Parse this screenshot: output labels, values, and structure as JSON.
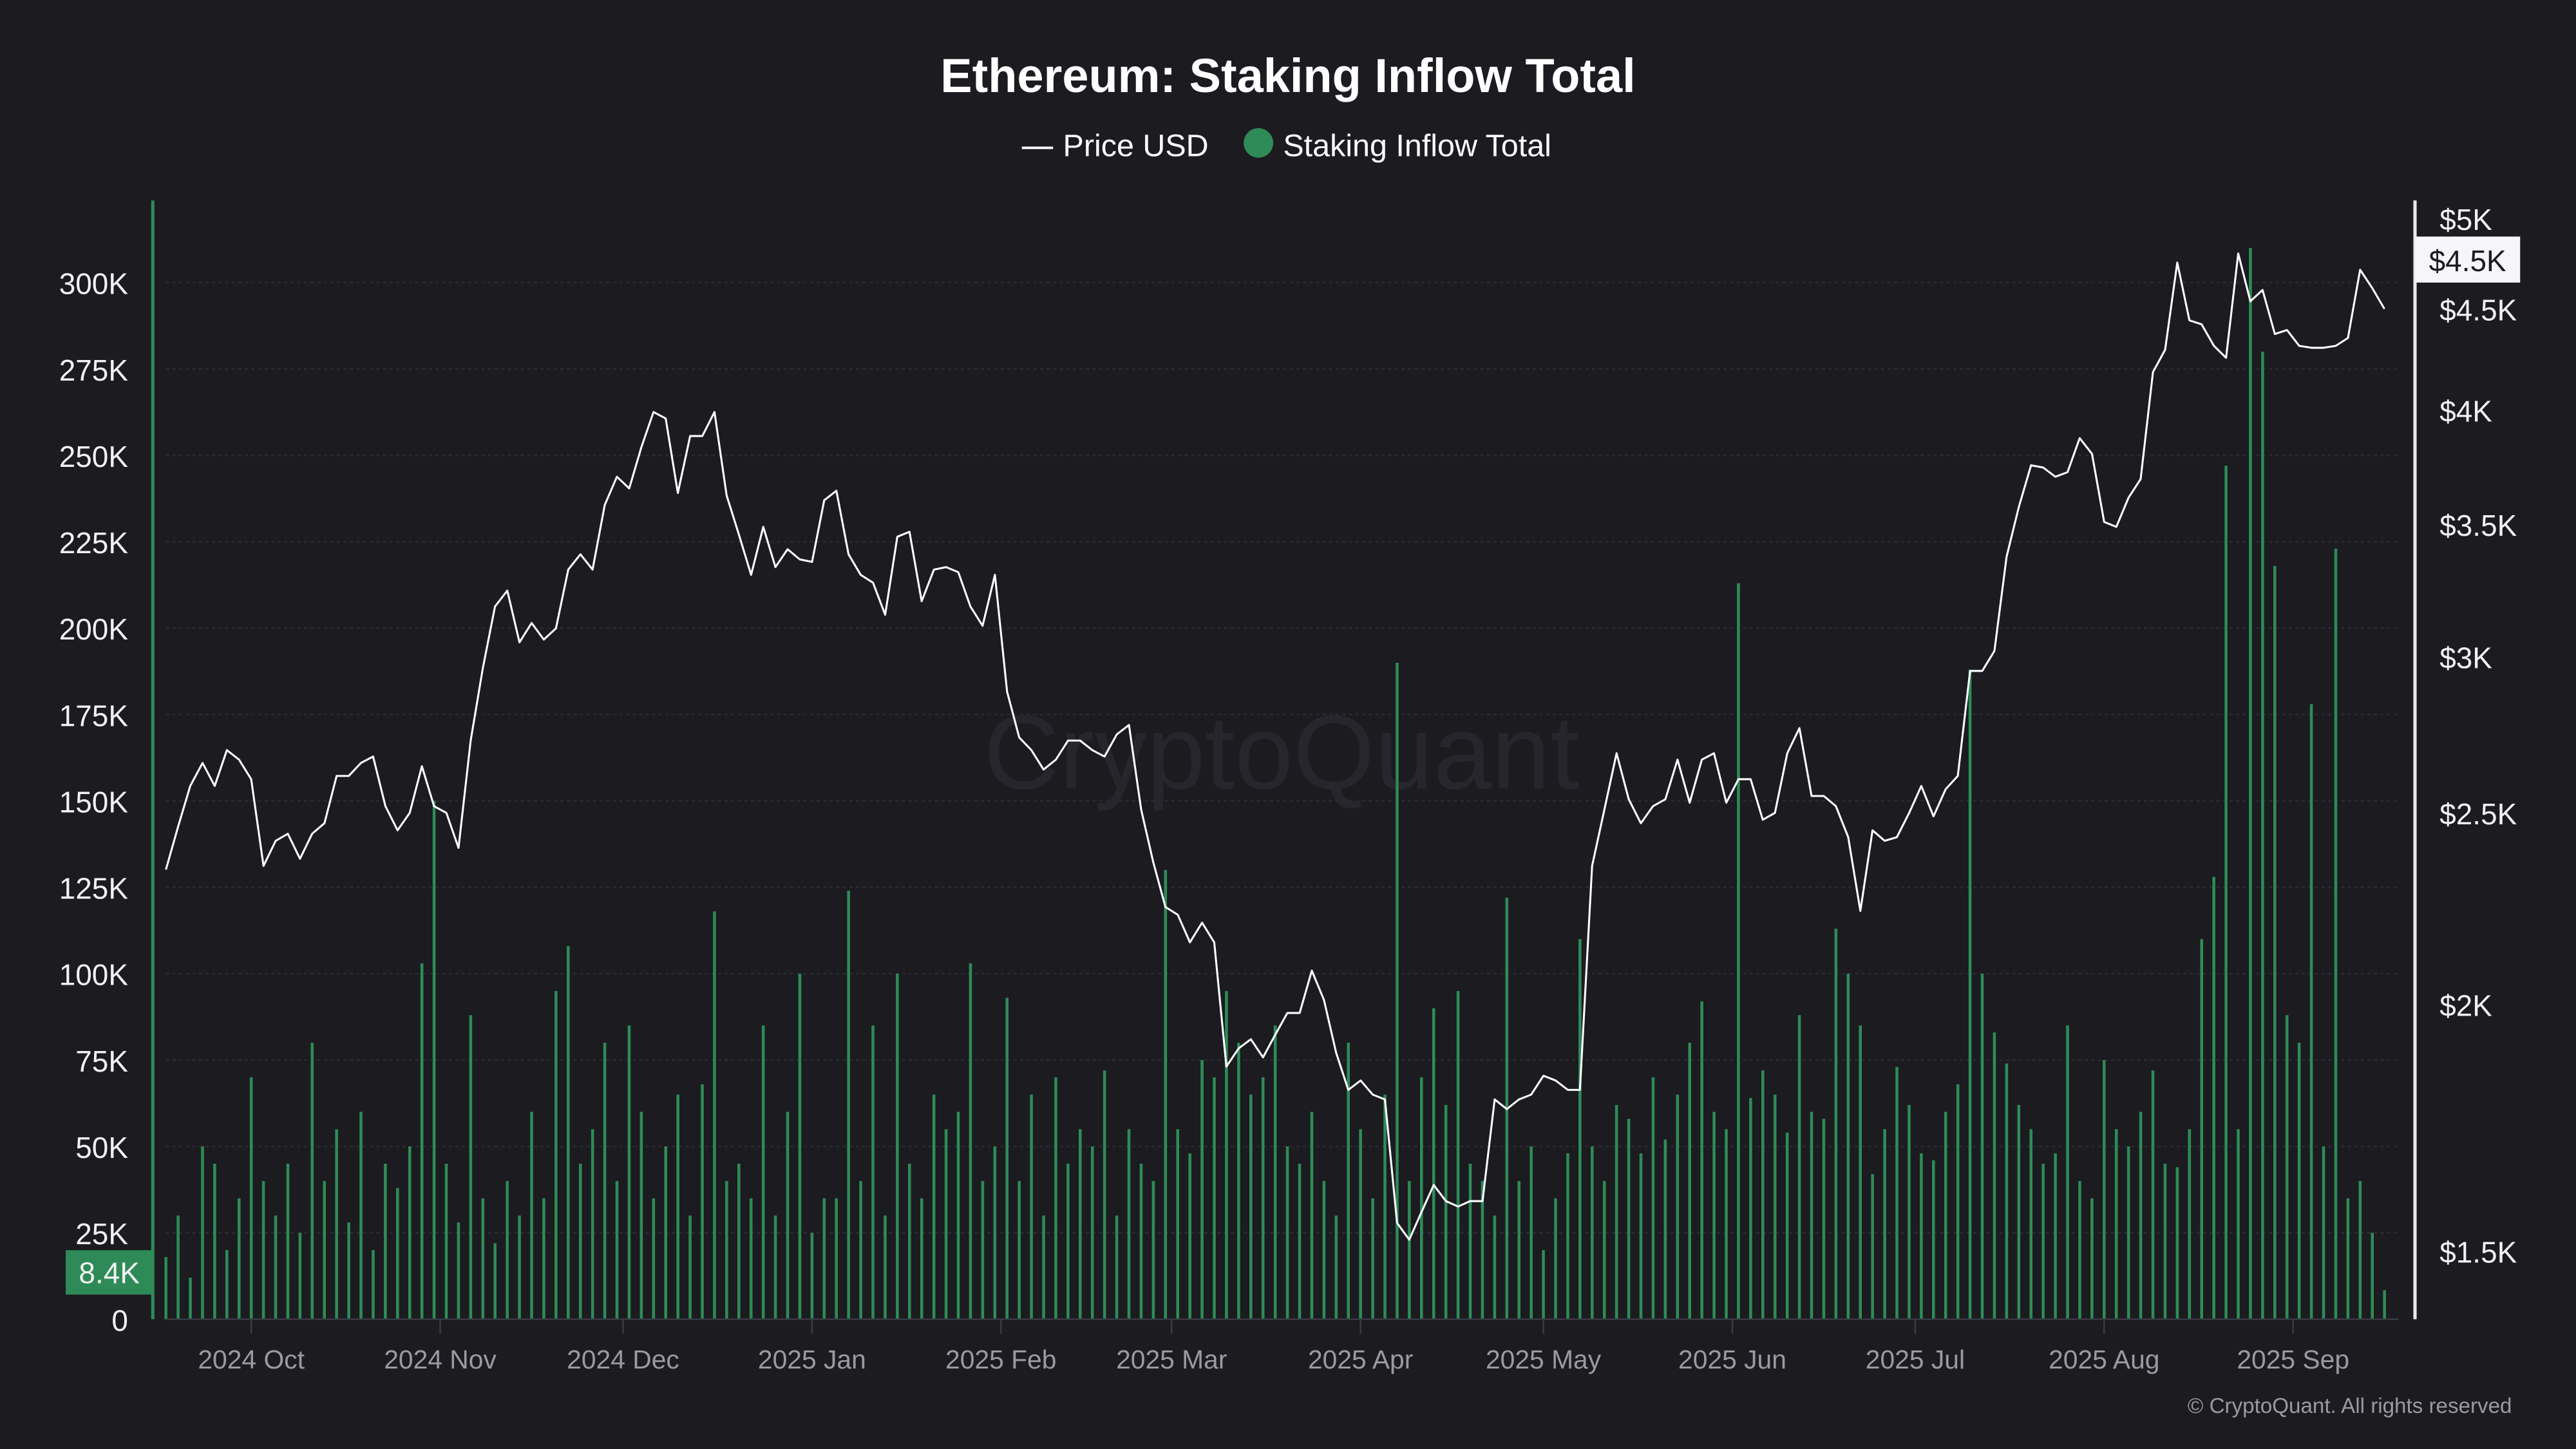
{
  "chart_data": {
    "type": "bar+line",
    "title": "Ethereum: Staking Inflow Total",
    "legend": {
      "position": "top-center",
      "items": [
        {
          "name": "Price USD",
          "color": "#ffffff",
          "marker": "line"
        },
        {
          "name": "Staking Inflow Total",
          "color": "#2e8b57",
          "marker": "dot"
        }
      ]
    },
    "x_start": "2024-09-17",
    "x_step_days": 2,
    "x_tick_labels": [
      "2024 Oct",
      "2024 Nov",
      "2024 Dec",
      "2025 Jan",
      "2025 Feb",
      "2025 Mar",
      "2025 Apr",
      "2025 May",
      "2025 Jun",
      "2025 Jul",
      "2025 Aug",
      "2025 Sep"
    ],
    "x_tick_dates": [
      "2024-10-01",
      "2024-11-01",
      "2024-12-01",
      "2025-01-01",
      "2025-02-01",
      "2025-03-01",
      "2025-04-01",
      "2025-05-01",
      "2025-06-01",
      "2025-07-01",
      "2025-08-01",
      "2025-09-01"
    ],
    "left_axis": {
      "ylim": [
        0,
        300000
      ],
      "ticks": [
        0,
        25000,
        50000,
        75000,
        100000,
        125000,
        150000,
        175000,
        200000,
        225000,
        250000,
        275000,
        300000
      ],
      "tick_labels": [
        "0",
        "25K",
        "50K",
        "75K",
        "100K",
        "125K",
        "150K",
        "175K",
        "200K",
        "225K",
        "250K",
        "275K",
        "300K"
      ],
      "color": "#2e8b57"
    },
    "right_axis": {
      "scale": "log",
      "ylim": [
        1300,
        5000
      ],
      "ticks": [
        1500,
        2000,
        2500,
        3000,
        3500,
        4000,
        4500,
        5000
      ],
      "tick_labels": [
        "$1.5K",
        "$2K",
        "$2.5K",
        "$3K",
        "$3.5K",
        "$4K",
        "$4.5K",
        "$5K"
      ]
    },
    "grid": true,
    "last_values": {
      "staking_inflow": "8.4K",
      "price": "$4.5K"
    },
    "series": [
      {
        "name": "Staking Inflow Total",
        "type": "bar",
        "axis": "left",
        "color": "#2e8b57",
        "values_k": [
          18,
          30,
          12,
          50,
          45,
          20,
          35,
          70,
          40,
          30,
          45,
          25,
          80,
          40,
          55,
          28,
          60,
          20,
          45,
          38,
          50,
          103,
          150,
          45,
          28,
          88,
          35,
          22,
          40,
          30,
          60,
          35,
          95,
          108,
          45,
          55,
          80,
          40,
          85,
          60,
          35,
          50,
          65,
          30,
          68,
          118,
          40,
          45,
          35,
          85,
          30,
          60,
          100,
          25,
          35,
          35,
          124,
          40,
          85,
          30,
          100,
          45,
          35,
          65,
          55,
          60,
          103,
          40,
          50,
          93,
          40,
          65,
          30,
          70,
          45,
          55,
          50,
          72,
          30,
          55,
          45,
          40,
          130,
          55,
          48,
          75,
          70,
          95,
          80,
          65,
          70,
          85,
          50,
          45,
          60,
          40,
          30,
          80,
          55,
          35,
          65,
          190,
          40,
          70,
          90,
          62,
          95,
          45,
          40,
          30,
          122,
          40,
          50,
          20,
          35,
          48,
          110,
          50,
          40,
          62,
          58,
          48,
          70,
          52,
          65,
          80,
          92,
          60,
          55,
          213,
          64,
          72,
          65,
          54,
          88,
          60,
          58,
          113,
          100,
          85,
          42,
          55,
          73,
          62,
          48,
          46,
          60,
          68,
          188,
          100,
          83,
          74,
          62,
          55,
          45,
          48,
          85,
          40,
          35,
          75,
          55,
          50,
          60,
          72,
          45,
          44,
          55,
          110,
          128,
          247,
          55,
          310,
          280,
          218,
          88,
          80,
          178,
          50,
          223,
          35,
          40,
          25,
          8.4
        ]
      },
      {
        "name": "Price USD",
        "type": "line",
        "axis": "right",
        "color": "#ffffff",
        "values": [
          2340,
          2460,
          2580,
          2650,
          2580,
          2690,
          2660,
          2600,
          2350,
          2420,
          2440,
          2370,
          2440,
          2470,
          2610,
          2610,
          2650,
          2670,
          2520,
          2450,
          2500,
          2640,
          2520,
          2500,
          2400,
          2720,
          2960,
          3180,
          3240,
          3050,
          3120,
          3060,
          3100,
          3320,
          3380,
          3320,
          3580,
          3700,
          3650,
          3830,
          3990,
          3960,
          3630,
          3880,
          3880,
          3990,
          3620,
          3460,
          3300,
          3490,
          3330,
          3400,
          3360,
          3350,
          3600,
          3640,
          3380,
          3300,
          3270,
          3150,
          3450,
          3470,
          3200,
          3320,
          3330,
          3310,
          3180,
          3110,
          3300,
          2880,
          2730,
          2690,
          2630,
          2660,
          2720,
          2720,
          2690,
          2670,
          2740,
          2770,
          2510,
          2360,
          2240,
          2220,
          2150,
          2200,
          2150,
          1860,
          1900,
          1920,
          1880,
          1930,
          1980,
          1980,
          2080,
          2010,
          1890,
          1810,
          1830,
          1800,
          1790,
          1550,
          1520,
          1570,
          1620,
          1590,
          1580,
          1590,
          1590,
          1790,
          1770,
          1790,
          1800,
          1840,
          1830,
          1810,
          1810,
          2350,
          2510,
          2680,
          2540,
          2470,
          2520,
          2540,
          2660,
          2530,
          2660,
          2680,
          2530,
          2600,
          2600,
          2480,
          2500,
          2680,
          2760,
          2550,
          2550,
          2520,
          2430,
          2230,
          2450,
          2420,
          2430,
          2500,
          2580,
          2490,
          2570,
          2610,
          2950,
          2950,
          3020,
          3370,
          3570,
          3750,
          3740,
          3700,
          3720,
          3870,
          3800,
          3510,
          3490,
          3610,
          3690,
          4180,
          4290,
          4750,
          4440,
          4420,
          4310,
          4250,
          4800,
          4540,
          4600,
          4370,
          4390,
          4310,
          4300,
          4300,
          4310,
          4350,
          4710,
          4610,
          4500
        ]
      }
    ]
  },
  "watermark": "CryptoQuant",
  "copyright": "© CryptoQuant. All rights reserved"
}
